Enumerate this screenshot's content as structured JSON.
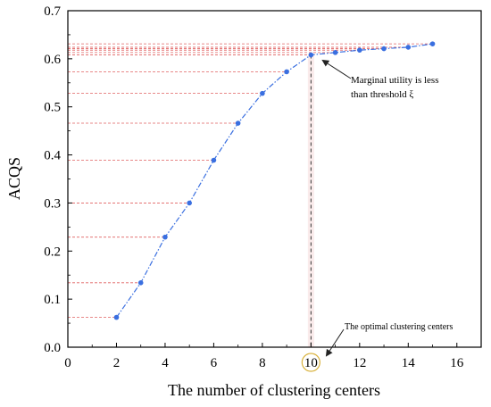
{
  "chart_data": {
    "type": "line",
    "title": "",
    "xlabel": "The number of clustering centers",
    "ylabel": "ACQS",
    "xlim": [
      0,
      17
    ],
    "ylim": [
      0,
      0.7
    ],
    "x_ticks": [
      0,
      2,
      4,
      6,
      8,
      10,
      12,
      14,
      16
    ],
    "y_ticks": [
      0.0,
      0.1,
      0.2,
      0.3,
      0.4,
      0.5,
      0.6,
      0.7
    ],
    "grid": false,
    "legend": "none",
    "series": [
      {
        "x": [
          2,
          3,
          4,
          5,
          6,
          7,
          8,
          9,
          10,
          11,
          12,
          13,
          14,
          15
        ],
        "values": [
          0.062,
          0.134,
          0.229,
          0.3,
          0.389,
          0.466,
          0.528,
          0.573,
          0.608,
          0.613,
          0.618,
          0.621,
          0.624,
          0.631
        ],
        "color": "#3a6fe0",
        "line_style": "dash-dot"
      }
    ],
    "guide_line_color": "#e06060",
    "optimal_x": 10,
    "annotations": {
      "marginal_line1": "Marginal utility is less",
      "marginal_line2": "than threshold ξ",
      "optimal": "The optimal  clustering centers"
    }
  }
}
